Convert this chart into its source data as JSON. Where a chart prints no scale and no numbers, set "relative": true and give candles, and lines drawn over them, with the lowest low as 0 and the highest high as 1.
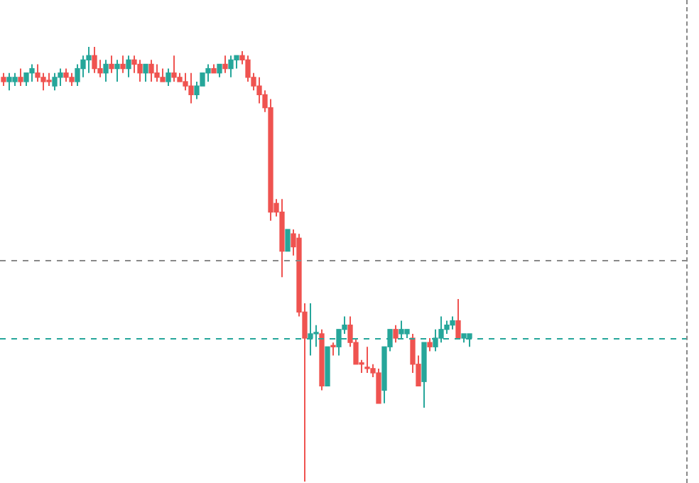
{
  "chart_data": {
    "type": "candlestick",
    "relative": true,
    "grid": false,
    "legend": false,
    "tick_labels": false,
    "categories": [
      null,
      null,
      null,
      null,
      null,
      null,
      null,
      null,
      null,
      null,
      null,
      null,
      null,
      null,
      null,
      null,
      null,
      null,
      null,
      null,
      null,
      null,
      null,
      null,
      null,
      null,
      null,
      null,
      null,
      null,
      null,
      null,
      null,
      null,
      null,
      null,
      null,
      null,
      null,
      null,
      null,
      null,
      null,
      null,
      null,
      null,
      null,
      null,
      null,
      null,
      null,
      null,
      null,
      null,
      null,
      null,
      null,
      null,
      null,
      null,
      null,
      null,
      null,
      null,
      null,
      null,
      null,
      null,
      null,
      null,
      null,
      null,
      null,
      null,
      null,
      null,
      null,
      null,
      null,
      null,
      null,
      null,
      null
    ],
    "colors": [
      "#ef5350",
      "#26a69a",
      "#26a69a",
      "#ef5350",
      "#26a69a",
      "#26a69a",
      "#ef5350",
      "#ef5350",
      "#ef5350",
      "#26a69a",
      "#26a69a",
      "#ef5350",
      "#ef5350",
      "#26a69a",
      "#26a69a",
      "#26a69a",
      "#ef5350",
      "#ef5350",
      "#26a69a",
      "#ef5350",
      "#26a69a",
      "#ef5350",
      "#26a69a",
      "#ef5350",
      "#ef5350",
      "#26a69a",
      "#ef5350",
      "#ef5350",
      "#ef5350",
      "#26a69a",
      "#ef5350",
      "#ef5350",
      "#ef5350",
      "#ef5350",
      "#26a69a",
      "#26a69a",
      "#26a69a",
      "#ef5350",
      "#26a69a",
      "#ef5350",
      "#26a69a",
      "#26a69a",
      "#ef5350",
      "#ef5350",
      "#ef5350",
      "#ef5350",
      "#ef5350",
      "#ef5350",
      "#ef5350",
      "#ef5350",
      "#26a69a",
      "#ef5350",
      "#ef5350",
      "#ef5350",
      "#26a69a",
      "#26a69a",
      "#ef5350",
      "#26a69a",
      "#ef5350",
      "#26a69a",
      "#26a69a",
      "#ef5350",
      "#ef5350",
      "#ef5350",
      "#ef5350",
      "#ef5350",
      "#ef5350",
      "#26a69a",
      "#26a69a",
      "#ef5350",
      "#26a69a",
      "#26a69a",
      "#ef5350",
      "#ef5350",
      "#26a69a",
      "#ef5350",
      "#26a69a",
      "#26a69a",
      "#26a69a",
      "#26a69a",
      "#ef5350",
      "#26a69a",
      "#26a69a"
    ],
    "ohlc": [
      [
        0.93,
        0.94,
        0.91,
        0.92
      ],
      [
        0.92,
        0.94,
        0.9,
        0.93
      ],
      [
        0.92,
        0.94,
        0.91,
        0.93
      ],
      [
        0.93,
        0.95,
        0.91,
        0.92
      ],
      [
        0.92,
        0.94,
        0.91,
        0.94
      ],
      [
        0.94,
        0.96,
        0.92,
        0.95
      ],
      [
        0.94,
        0.96,
        0.92,
        0.93
      ],
      [
        0.93,
        0.94,
        0.9,
        0.92
      ],
      [
        0.92,
        0.94,
        0.91,
        0.92
      ],
      [
        0.91,
        0.94,
        0.9,
        0.93
      ],
      [
        0.93,
        0.95,
        0.91,
        0.94
      ],
      [
        0.94,
        0.95,
        0.92,
        0.93
      ],
      [
        0.93,
        0.94,
        0.91,
        0.92
      ],
      [
        0.92,
        0.96,
        0.91,
        0.95
      ],
      [
        0.95,
        0.98,
        0.93,
        0.97
      ],
      [
        0.97,
        1.0,
        0.94,
        0.98
      ],
      [
        0.98,
        1.0,
        0.94,
        0.95
      ],
      [
        0.95,
        0.97,
        0.93,
        0.94
      ],
      [
        0.94,
        0.97,
        0.92,
        0.96
      ],
      [
        0.96,
        0.98,
        0.94,
        0.95
      ],
      [
        0.95,
        0.97,
        0.92,
        0.96
      ],
      [
        0.96,
        0.98,
        0.94,
        0.95
      ],
      [
        0.95,
        0.98,
        0.93,
        0.97
      ],
      [
        0.97,
        0.98,
        0.94,
        0.96
      ],
      [
        0.96,
        0.97,
        0.92,
        0.94
      ],
      [
        0.94,
        0.96,
        0.92,
        0.96
      ],
      [
        0.96,
        0.97,
        0.92,
        0.94
      ],
      [
        0.94,
        0.96,
        0.92,
        0.93
      ],
      [
        0.93,
        0.95,
        0.92,
        0.92
      ],
      [
        0.92,
        0.95,
        0.91,
        0.94
      ],
      [
        0.94,
        0.98,
        0.92,
        0.93
      ],
      [
        0.93,
        0.94,
        0.92,
        0.92
      ],
      [
        0.92,
        0.94,
        0.9,
        0.91
      ],
      [
        0.91,
        0.94,
        0.87,
        0.89
      ],
      [
        0.89,
        0.92,
        0.88,
        0.91
      ],
      [
        0.91,
        0.94,
        0.91,
        0.94
      ],
      [
        0.94,
        0.96,
        0.92,
        0.95
      ],
      [
        0.95,
        0.96,
        0.94,
        0.94
      ],
      [
        0.94,
        0.96,
        0.93,
        0.96
      ],
      [
        0.96,
        0.98,
        0.94,
        0.95
      ],
      [
        0.95,
        0.98,
        0.93,
        0.97
      ],
      [
        0.97,
        0.98,
        0.95,
        0.98
      ],
      [
        0.98,
        0.99,
        0.96,
        0.97
      ],
      [
        0.97,
        0.98,
        0.92,
        0.93
      ],
      [
        0.93,
        0.94,
        0.9,
        0.91
      ],
      [
        0.91,
        0.93,
        0.87,
        0.89
      ],
      [
        0.89,
        0.9,
        0.85,
        0.86
      ],
      [
        0.86,
        0.88,
        0.6,
        0.62
      ],
      [
        0.64,
        0.65,
        0.61,
        0.62
      ],
      [
        0.62,
        0.65,
        0.47,
        0.53
      ],
      [
        0.53,
        0.58,
        0.53,
        0.58
      ],
      [
        0.57,
        0.58,
        0.52,
        0.54
      ],
      [
        0.56,
        0.57,
        0.38,
        0.39
      ],
      [
        0.39,
        0.41,
        0.0,
        0.33
      ],
      [
        0.33,
        0.41,
        0.29,
        0.34
      ],
      [
        0.34,
        0.36,
        0.31,
        0.34
      ],
      [
        0.34,
        0.35,
        0.21,
        0.22
      ],
      [
        0.22,
        0.31,
        0.22,
        0.31
      ],
      [
        0.31,
        0.32,
        0.29,
        0.31
      ],
      [
        0.31,
        0.35,
        0.29,
        0.35
      ],
      [
        0.35,
        0.38,
        0.34,
        0.36
      ],
      [
        0.36,
        0.38,
        0.31,
        0.32
      ],
      [
        0.32,
        0.33,
        0.27,
        0.27
      ],
      [
        0.27,
        0.28,
        0.25,
        0.27
      ],
      [
        0.26,
        0.31,
        0.25,
        0.26
      ],
      [
        0.26,
        0.27,
        0.24,
        0.25
      ],
      [
        0.25,
        0.26,
        0.18,
        0.18
      ],
      [
        0.21,
        0.31,
        0.18,
        0.31
      ],
      [
        0.31,
        0.35,
        0.3,
        0.35
      ],
      [
        0.35,
        0.36,
        0.32,
        0.33
      ],
      [
        0.34,
        0.37,
        0.33,
        0.35
      ],
      [
        0.34,
        0.35,
        0.33,
        0.35
      ],
      [
        0.33,
        0.34,
        0.25,
        0.27
      ],
      [
        0.27,
        0.29,
        0.22,
        0.22
      ],
      [
        0.23,
        0.32,
        0.17,
        0.32
      ],
      [
        0.32,
        0.33,
        0.3,
        0.31
      ],
      [
        0.31,
        0.35,
        0.3,
        0.33
      ],
      [
        0.33,
        0.38,
        0.32,
        0.35
      ],
      [
        0.35,
        0.37,
        0.34,
        0.36
      ],
      [
        0.36,
        0.38,
        0.35,
        0.37
      ],
      [
        0.37,
        0.42,
        0.33,
        0.33
      ],
      [
        0.33,
        0.34,
        0.32,
        0.34
      ],
      [
        0.33,
        0.34,
        0.31,
        0.34
      ]
    ],
    "ref_lines": [
      {
        "axis": "y",
        "value": 0.51,
        "color": "#888888",
        "line_style": "dashed"
      },
      {
        "axis": "y",
        "value": 0.33,
        "color": "#26a69a",
        "line_style": "dashed"
      }
    ]
  }
}
